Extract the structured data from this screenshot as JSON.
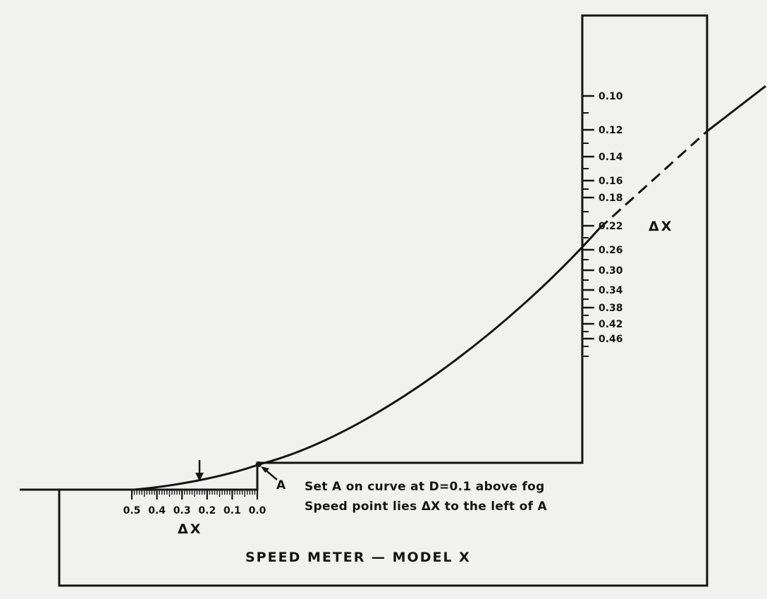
{
  "diagram": {
    "title": "SPEED METER — MODEL X",
    "note_line1": "Set A on curve at D=0.1 above fog",
    "note_line2": "Speed point lies ΔX to the left of A",
    "point_label": "A",
    "vertical_scale_label": "ΔX",
    "horizontal_scale_label": "ΔX",
    "vertical_scale": [
      "0.10",
      "0.12",
      "0.14",
      "0.16",
      "0.18",
      "0.22",
      "0.26",
      "0.30",
      "0.34",
      "0.38",
      "0.42",
      "0.46"
    ],
    "horizontal_scale": [
      "0.5",
      "0.4",
      "0.3",
      "0.2",
      "0.1",
      "0.0"
    ]
  },
  "colors": {
    "ink": "#141414",
    "paper": "#f1f1f0"
  }
}
